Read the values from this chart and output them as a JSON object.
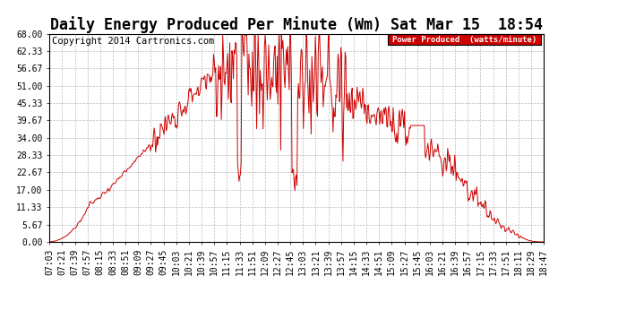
{
  "title": "Daily Energy Produced Per Minute (Wm) Sat Mar 15  18:54",
  "copyright": "Copyright 2014 Cartronics.com",
  "legend_label": "Power Produced  (watts/minute)",
  "legend_bg": "#cc0000",
  "legend_fg": "#ffffff",
  "line_color": "#cc0000",
  "bg_color": "#ffffff",
  "grid_color": "#bbbbbb",
  "ymin": 0.0,
  "ymax": 68.0,
  "yticks": [
    0.0,
    5.67,
    11.33,
    17.0,
    22.67,
    28.33,
    34.0,
    39.67,
    45.33,
    51.0,
    56.67,
    62.33,
    68.0
  ],
  "xtick_labels": [
    "07:03",
    "07:21",
    "07:39",
    "07:57",
    "08:15",
    "08:33",
    "08:51",
    "09:09",
    "09:27",
    "09:45",
    "10:03",
    "10:21",
    "10:39",
    "10:57",
    "11:15",
    "11:33",
    "11:51",
    "12:09",
    "12:27",
    "12:45",
    "13:03",
    "13:21",
    "13:39",
    "13:57",
    "14:15",
    "14:33",
    "14:51",
    "15:09",
    "15:27",
    "15:45",
    "16:03",
    "16:21",
    "16:39",
    "16:57",
    "17:15",
    "17:33",
    "17:51",
    "18:11",
    "18:29",
    "18:47"
  ],
  "title_fontsize": 12,
  "tick_fontsize": 7,
  "copyright_fontsize": 7.5
}
